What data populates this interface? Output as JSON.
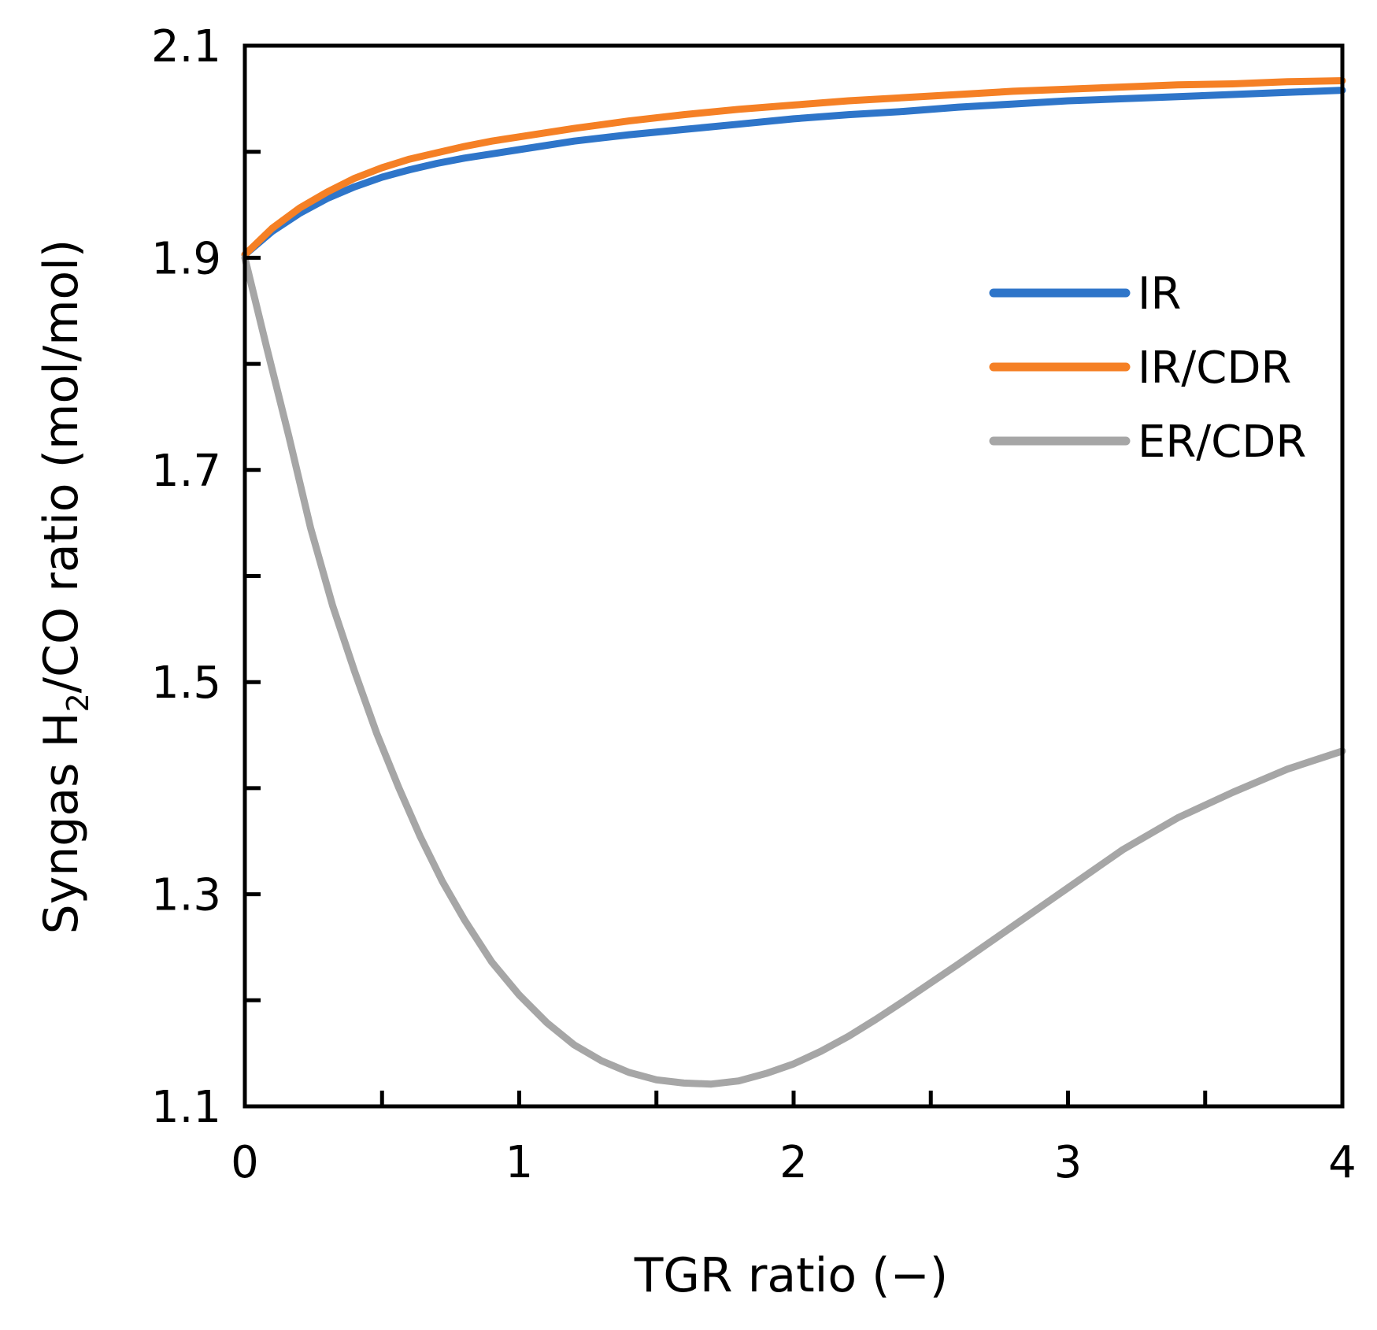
{
  "chart_data": {
    "type": "line",
    "title": "",
    "xlabel": "TGR ratio (−)",
    "ylabel_parts": {
      "prefix": "Syngas H",
      "subscript": "2",
      "suffix": "/CO ratio (mol/mol)"
    },
    "xlim": [
      0,
      4
    ],
    "ylim": [
      1.1,
      2.1
    ],
    "x_ticks": [
      0,
      1,
      2,
      3,
      4
    ],
    "x_tick_labels": [
      "0",
      "1",
      "2",
      "3",
      "4"
    ],
    "x_minor_ticks": [
      0.5,
      1.5,
      2.5,
      3.5
    ],
    "y_ticks": [
      1.1,
      1.3,
      1.5,
      1.7,
      1.9,
      2.1
    ],
    "y_tick_labels": [
      "1.1",
      "1.3",
      "1.5",
      "1.7",
      "1.9",
      "2.1"
    ],
    "y_minor_ticks": [
      1.2,
      1.4,
      1.6,
      1.8,
      2.0
    ],
    "grid": false,
    "legend_position": "right",
    "series": [
      {
        "name": "IR",
        "color": "#2E75C9",
        "x": [
          0,
          0.1,
          0.2,
          0.3,
          0.4,
          0.5,
          0.6,
          0.7,
          0.8,
          0.9,
          1.0,
          1.2,
          1.4,
          1.6,
          1.8,
          2.0,
          2.2,
          2.4,
          2.6,
          2.8,
          3.0,
          3.2,
          3.4,
          3.6,
          3.8,
          4.0
        ],
        "values": [
          1.903,
          1.925,
          1.942,
          1.956,
          1.967,
          1.976,
          1.983,
          1.989,
          1.994,
          1.998,
          2.002,
          2.01,
          2.016,
          2.021,
          2.026,
          2.031,
          2.035,
          2.038,
          2.042,
          2.045,
          2.048,
          2.05,
          2.052,
          2.054,
          2.056,
          2.058
        ]
      },
      {
        "name": "IR/CDR",
        "color": "#F58025",
        "x": [
          0,
          0.1,
          0.2,
          0.3,
          0.4,
          0.5,
          0.6,
          0.7,
          0.8,
          0.9,
          1.0,
          1.2,
          1.4,
          1.6,
          1.8,
          2.0,
          2.2,
          2.4,
          2.6,
          2.8,
          3.0,
          3.2,
          3.4,
          3.6,
          3.8,
          4.0
        ],
        "values": [
          1.903,
          1.928,
          1.947,
          1.962,
          1.975,
          1.985,
          1.993,
          1.999,
          2.005,
          2.01,
          2.014,
          2.022,
          2.029,
          2.035,
          2.04,
          2.044,
          2.048,
          2.051,
          2.054,
          2.057,
          2.059,
          2.061,
          2.063,
          2.064,
          2.066,
          2.067
        ]
      },
      {
        "name": "ER/CDR",
        "color": "#A6A6A6",
        "x": [
          0,
          0.08,
          0.16,
          0.24,
          0.32,
          0.4,
          0.48,
          0.56,
          0.64,
          0.72,
          0.8,
          0.9,
          1.0,
          1.1,
          1.2,
          1.3,
          1.4,
          1.5,
          1.6,
          1.7,
          1.8,
          1.9,
          2.0,
          2.1,
          2.2,
          2.3,
          2.4,
          2.6,
          2.8,
          3.0,
          3.2,
          3.4,
          3.6,
          3.8,
          4.0
        ],
        "values": [
          1.9,
          1.815,
          1.732,
          1.645,
          1.572,
          1.51,
          1.452,
          1.401,
          1.354,
          1.312,
          1.276,
          1.236,
          1.205,
          1.179,
          1.158,
          1.143,
          1.132,
          1.125,
          1.122,
          1.121,
          1.124,
          1.131,
          1.14,
          1.152,
          1.166,
          1.182,
          1.199,
          1.234,
          1.27,
          1.306,
          1.342,
          1.372,
          1.396,
          1.418,
          1.435
        ]
      }
    ]
  }
}
